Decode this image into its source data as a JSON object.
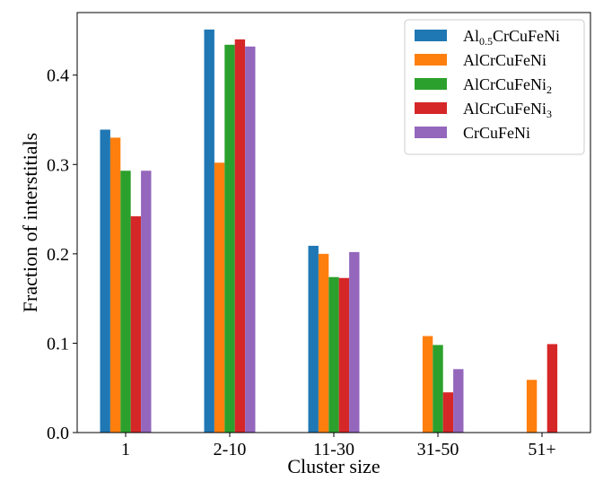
{
  "chart_data": {
    "type": "bar",
    "title": "",
    "xlabel": "Cluster size",
    "ylabel": "Fraction of interstitials",
    "categories": [
      "1",
      "2-10",
      "11-30",
      "31-50",
      "51+"
    ],
    "ylim": [
      0,
      0.47
    ],
    "yticks": [
      0.0,
      0.1,
      0.2,
      0.3,
      0.4
    ],
    "ytick_labels": [
      "0.0",
      "0.1",
      "0.2",
      "0.3",
      "0.4"
    ],
    "grid": false,
    "legend_position": "top-right",
    "series": [
      {
        "name": "Al0.5CrCuFeNi",
        "label_main": "Al",
        "label_sub": "0.5",
        "label_rest": "CrCuFeNi",
        "color": "#1f77b4",
        "values": [
          0.339,
          0.451,
          0.209,
          0.0,
          0.0
        ]
      },
      {
        "name": "AlCrCuFeNi",
        "label_main": "AlCrCuFeNi",
        "label_sub": "",
        "label_rest": "",
        "color": "#ff7f0e",
        "values": [
          0.33,
          0.302,
          0.2,
          0.108,
          0.059
        ]
      },
      {
        "name": "AlCrCuFeNi2",
        "label_main": "AlCrCuFeNi",
        "label_sub": "2",
        "label_rest": "",
        "color": "#2ca02c",
        "values": [
          0.293,
          0.434,
          0.174,
          0.098,
          0.0
        ]
      },
      {
        "name": "AlCrCuFeNi3",
        "label_main": "AlCrCuFeNi",
        "label_sub": "3",
        "label_rest": "",
        "color": "#d62728",
        "values": [
          0.242,
          0.44,
          0.173,
          0.045,
          0.099
        ]
      },
      {
        "name": "CrCuFeNi",
        "label_main": "CrCuFeNi",
        "label_sub": "",
        "label_rest": "",
        "color": "#9467bd",
        "values": [
          0.293,
          0.432,
          0.202,
          0.071,
          0.0
        ]
      }
    ]
  }
}
